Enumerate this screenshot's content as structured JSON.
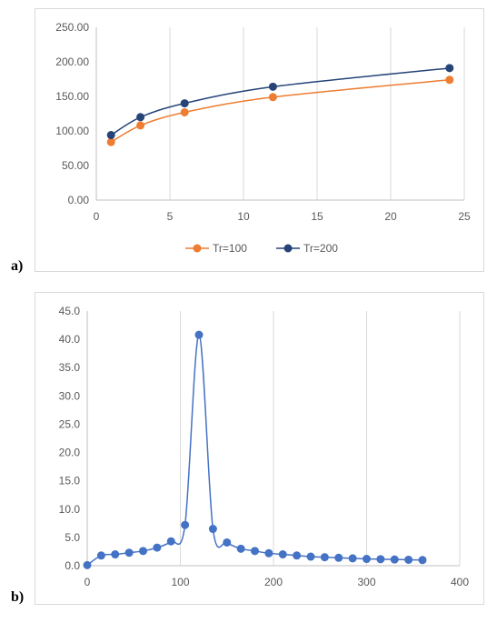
{
  "panels": {
    "a": "a)",
    "b": "b)"
  },
  "chart_data": [
    {
      "type": "line",
      "title": "",
      "xlabel": "",
      "ylabel": "",
      "xlim": [
        0,
        25
      ],
      "ylim": [
        0,
        250
      ],
      "x_ticks": [
        "0",
        "5",
        "10",
        "15",
        "20",
        "25"
      ],
      "y_ticks": [
        "0.00",
        "50.00",
        "100.00",
        "150.00",
        "200.00",
        "250.00"
      ],
      "grid": "vertical",
      "legend_position": "bottom",
      "x": [
        1,
        3,
        6,
        12,
        24
      ],
      "series": [
        {
          "name": "Tr=100",
          "color": "#ED7D31",
          "values": [
            84,
            108,
            127,
            149,
            174
          ]
        },
        {
          "name": "Tr=200",
          "color": "#264478",
          "values": [
            94,
            120,
            140,
            164,
            191
          ]
        }
      ]
    },
    {
      "type": "scatter",
      "title": "",
      "xlabel": "",
      "ylabel": "",
      "xlim": [
        0,
        400
      ],
      "ylim": [
        0,
        45
      ],
      "x_ticks": [
        "0",
        "100",
        "200",
        "300",
        "400"
      ],
      "y_ticks": [
        "0.0",
        "5.0",
        "10.0",
        "15.0",
        "20.0",
        "25.0",
        "30.0",
        "35.0",
        "40.0",
        "45.0"
      ],
      "grid": "vertical",
      "series": [
        {
          "color": "#4472C4",
          "x": [
            0,
            15,
            30,
            45,
            60,
            75,
            90,
            105,
            120,
            135,
            150,
            165,
            180,
            195,
            210,
            225,
            240,
            255,
            270,
            285,
            300,
            315,
            330,
            345,
            360
          ],
          "values": [
            0.1,
            1.8,
            2.0,
            2.3,
            2.6,
            3.2,
            4.3,
            7.2,
            40.8,
            6.5,
            4.1,
            3.0,
            2.6,
            2.2,
            2.0,
            1.8,
            1.6,
            1.5,
            1.4,
            1.3,
            1.2,
            1.15,
            1.1,
            1.05,
            1.0
          ]
        }
      ]
    }
  ]
}
